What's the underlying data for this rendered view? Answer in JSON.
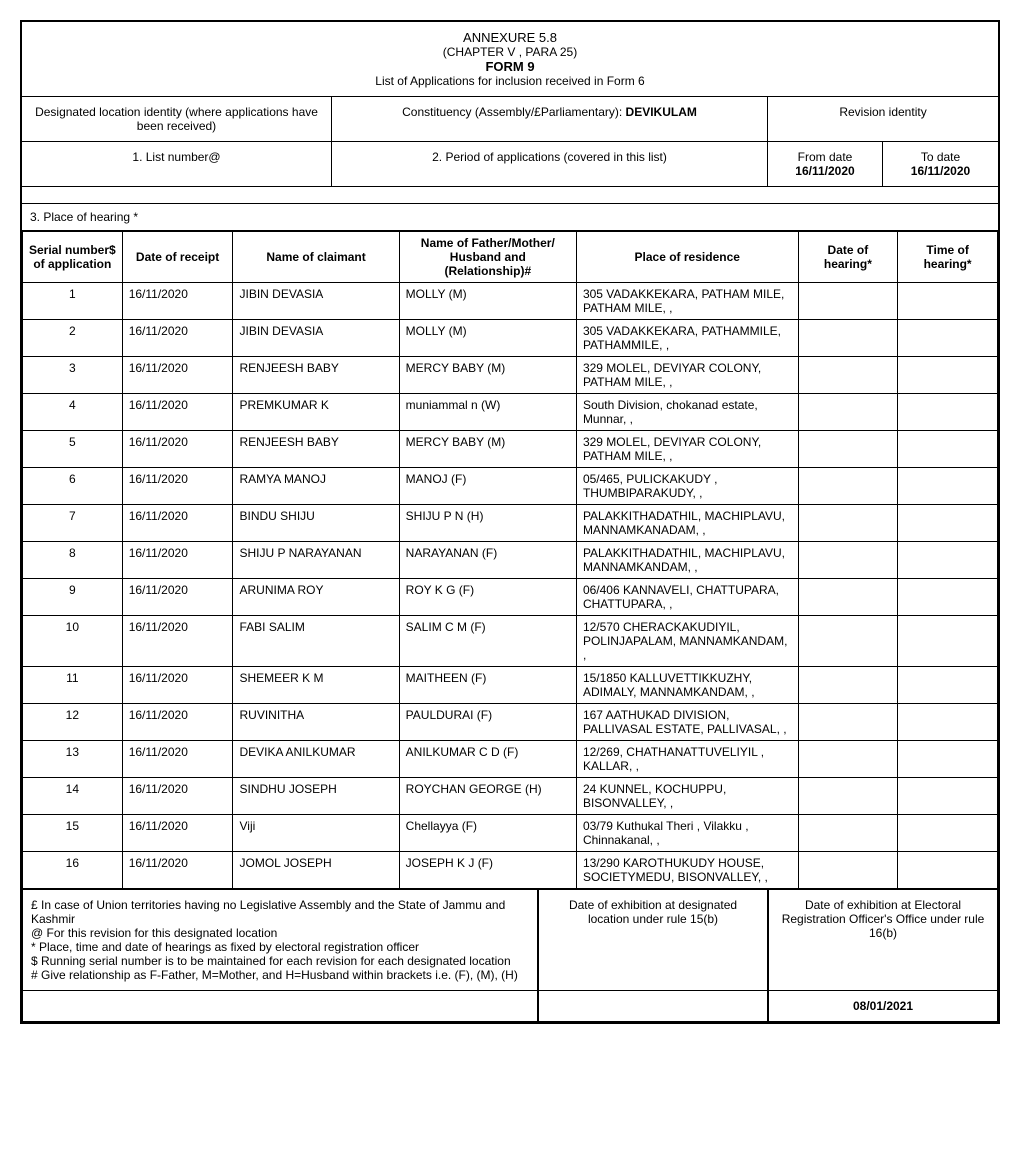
{
  "header": {
    "annexure": "ANNEXURE 5.8",
    "chapter": "(CHAPTER  V , PARA 25)",
    "form": "FORM 9",
    "subtitle": "List of Applications for inclusion received in Form 6"
  },
  "info": {
    "designated_location_label": "Designated location identity (where applications have been received)",
    "constituency_label": "Constituency (Assembly/£Parliamentary): ",
    "constituency_value": "DEVIKULAM",
    "revision_label": "Revision identity",
    "list_number_label": "1. List number@",
    "period_label": "2. Period of applications (covered in this list)",
    "from_date_label": "From date",
    "from_date_value": "16/11/2020",
    "to_date_label": "To date",
    "to_date_value": "16/11/2020",
    "place_of_hearing_label": "3. Place of hearing *"
  },
  "columns": {
    "serial": "Serial number$ of application",
    "date": "Date of receipt",
    "claimant": "Name of claimant",
    "relation": "Name of Father/Mother/ Husband and (Relationship)#",
    "residence": "Place of residence",
    "doh": "Date of hearing*",
    "toh": "Time of hearing*"
  },
  "rows": [
    {
      "serial": "1",
      "date": "16/11/2020",
      "claimant": "JIBIN DEVASIA",
      "relation": "MOLLY  (M)",
      "residence": "305 VADAKKEKARA, PATHAM MILE, PATHAM MILE, ,",
      "doh": "",
      "toh": ""
    },
    {
      "serial": "2",
      "date": "16/11/2020",
      "claimant": "JIBIN DEVASIA",
      "relation": "MOLLY  (M)",
      "residence": "305  VADAKKEKARA, PATHAMMILE, PATHAMMILE, ,",
      "doh": "",
      "toh": ""
    },
    {
      "serial": "3",
      "date": "16/11/2020",
      "claimant": "RENJEESH BABY",
      "relation": "MERCY BABY  (M)",
      "residence": "329 MOLEL, DEVIYAR COLONY, PATHAM MILE, ,",
      "doh": "",
      "toh": ""
    },
    {
      "serial": "4",
      "date": "16/11/2020",
      "claimant": "PREMKUMAR  K",
      "relation": "muniammal n (W)",
      "residence": "South Division, chokanad estate, Munnar, ,",
      "doh": "",
      "toh": ""
    },
    {
      "serial": "5",
      "date": "16/11/2020",
      "claimant": "RENJEESH BABY",
      "relation": "MERCY BABY  (M)",
      "residence": "329 MOLEL, DEVIYAR COLONY, PATHAM MILE, ,",
      "doh": "",
      "toh": ""
    },
    {
      "serial": "6",
      "date": "16/11/2020",
      "claimant": "RAMYA MANOJ",
      "relation": "MANOJ  (F)",
      "residence": "05/465, PULICKAKUDY , THUMBIPARAKUDY, ,",
      "doh": "",
      "toh": ""
    },
    {
      "serial": "7",
      "date": "16/11/2020",
      "claimant": "BINDU SHIJU",
      "relation": "SHIJU P N  (H)",
      "residence": "PALAKKITHADATHIL, MACHIPLAVU, MANNAMKANADAM, ,",
      "doh": "",
      "toh": ""
    },
    {
      "serial": "8",
      "date": "16/11/2020",
      "claimant": "SHIJU P NARAYANAN",
      "relation": "NARAYANAN  (F)",
      "residence": "PALAKKITHADATHIL, MACHIPLAVU, MANNAMKANDAM, ,",
      "doh": "",
      "toh": ""
    },
    {
      "serial": "9",
      "date": "16/11/2020",
      "claimant": "ARUNIMA ROY",
      "relation": "ROY K G  (F)",
      "residence": "06/406 KANNAVELI, CHATTUPARA, CHATTUPARA, ,",
      "doh": "",
      "toh": ""
    },
    {
      "serial": "10",
      "date": "16/11/2020",
      "claimant": "FABI SALIM",
      "relation": "SALIM C M  (F)",
      "residence": "12/570 CHERACKAKUDIYIL, POLINJAPALAM, MANNAMKANDAM, ,",
      "doh": "",
      "toh": ""
    },
    {
      "serial": "11",
      "date": "16/11/2020",
      "claimant": "SHEMEER K M",
      "relation": "MAITHEEN  (F)",
      "residence": "15/1850 KALLUVETTIKKUZHY, ADIMALY, MANNAMKANDAM, ,",
      "doh": "",
      "toh": ""
    },
    {
      "serial": "12",
      "date": "16/11/2020",
      "claimant": "RUVINITHA",
      "relation": "PAULDURAI  (F)",
      "residence": "167 AATHUKAD DIVISION, PALLIVASAL ESTATE, PALLIVASAL, ,",
      "doh": "",
      "toh": ""
    },
    {
      "serial": "13",
      "date": "16/11/2020",
      "claimant": "DEVIKA ANILKUMAR",
      "relation": "ANILKUMAR C D  (F)",
      "residence": "12/269, CHATHANATTUVELIYIL , KALLAR, ,",
      "doh": "",
      "toh": ""
    },
    {
      "serial": "14",
      "date": "16/11/2020",
      "claimant": "SINDHU JOSEPH",
      "relation": "ROYCHAN GEORGE (H)",
      "residence": "24 KUNNEL, KOCHUPPU, BISONVALLEY, ,",
      "doh": "",
      "toh": ""
    },
    {
      "serial": "15",
      "date": "16/11/2020",
      "claimant": "Viji",
      "relation": "Chellayya  (F)",
      "residence": "03/79 Kuthukal Theri , Vilakku , Chinnakanal, ,",
      "doh": "",
      "toh": ""
    },
    {
      "serial": "16",
      "date": "16/11/2020",
      "claimant": "JOMOL JOSEPH",
      "relation": "JOSEPH K J  (F)",
      "residence": "13/290 KAROTHUKUDY HOUSE, SOCIETYMEDU, BISONVALLEY, ,",
      "doh": "",
      "toh": ""
    }
  ],
  "footer": {
    "notes": "£ In case of Union territories having no Legislative Assembly and the State of Jammu and Kashmir\n@ For this revision for this designated location\n* Place, time and date of hearings as fixed by electoral registration officer\n$ Running serial number is to be maintained for each revision for each designated location\n# Give relationship as F-Father, M=Mother, and H=Husband within brackets i.e. (F), (M), (H)",
    "exhibition_designated": "Date of exhibition at designated location under rule 15(b)",
    "exhibition_officer": "Date of exhibition at Electoral Registration Officer's Office under rule 16(b)",
    "date_value": "08/01/2021"
  }
}
